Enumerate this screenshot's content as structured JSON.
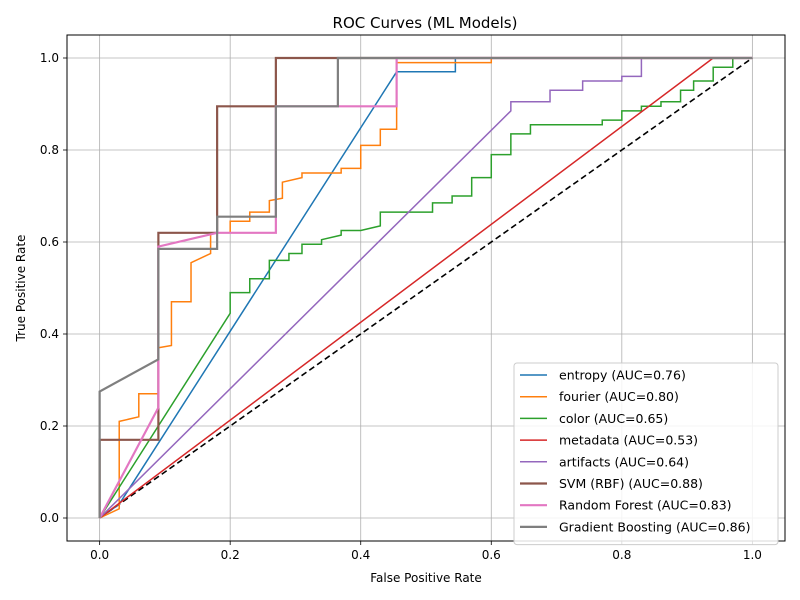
{
  "chart_data": {
    "type": "line",
    "title": "ROC Curves (ML Models)",
    "xlabel": "False Positive Rate",
    "ylabel": "True Positive Rate",
    "xlim": [
      -0.05,
      1.05
    ],
    "ylim": [
      -0.05,
      1.05
    ],
    "xticks": [
      0.0,
      0.2,
      0.4,
      0.6,
      0.8,
      1.0
    ],
    "yticks": [
      0.0,
      0.2,
      0.4,
      0.6,
      0.8,
      1.0
    ],
    "xtick_labels": [
      "0.0",
      "0.2",
      "0.4",
      "0.6",
      "0.8",
      "1.0"
    ],
    "ytick_labels": [
      "0.0",
      "0.2",
      "0.4",
      "0.6",
      "0.8",
      "1.0"
    ],
    "grid": true,
    "legend_position": "lower-right",
    "diagonal": {
      "x": [
        0,
        1
      ],
      "y": [
        0,
        1
      ],
      "color": "#000000",
      "style": "dashed"
    },
    "series": [
      {
        "name": "entropy (AUC=0.76)",
        "color": "#1f77b4",
        "x": [
          0,
          0.03,
          0.455,
          0.455,
          0.545,
          0.545,
          1.0
        ],
        "y": [
          0,
          0.03,
          0.97,
          0.97,
          0.97,
          1.0,
          1.0
        ]
      },
      {
        "name": "fourier (AUC=0.80)",
        "color": "#ff7f0e",
        "x": [
          0,
          0.03,
          0.03,
          0.06,
          0.06,
          0.09,
          0.09,
          0.11,
          0.11,
          0.14,
          0.14,
          0.17,
          0.17,
          0.2,
          0.2,
          0.23,
          0.23,
          0.26,
          0.26,
          0.28,
          0.28,
          0.31,
          0.31,
          0.37,
          0.37,
          0.4,
          0.4,
          0.43,
          0.43,
          0.455,
          0.455,
          0.6,
          0.6,
          1.0
        ],
        "y": [
          0,
          0.02,
          0.21,
          0.22,
          0.27,
          0.27,
          0.37,
          0.375,
          0.47,
          0.47,
          0.555,
          0.575,
          0.62,
          0.62,
          0.645,
          0.645,
          0.665,
          0.665,
          0.69,
          0.695,
          0.73,
          0.74,
          0.75,
          0.75,
          0.76,
          0.76,
          0.81,
          0.81,
          0.845,
          0.845,
          0.99,
          0.99,
          1.0,
          1.0
        ]
      },
      {
        "name": "color (AUC=0.65)",
        "color": "#2ca02c",
        "x": [
          0,
          0.2,
          0.2,
          0.23,
          0.23,
          0.26,
          0.26,
          0.29,
          0.29,
          0.31,
          0.31,
          0.34,
          0.34,
          0.37,
          0.37,
          0.4,
          0.43,
          0.43,
          0.51,
          0.51,
          0.54,
          0.54,
          0.57,
          0.57,
          0.6,
          0.6,
          0.63,
          0.63,
          0.66,
          0.66,
          0.77,
          0.77,
          0.8,
          0.8,
          0.83,
          0.83,
          0.86,
          0.86,
          0.89,
          0.89,
          0.91,
          0.91,
          0.94,
          0.94,
          0.97,
          0.97,
          1.0
        ],
        "y": [
          0,
          0.445,
          0.49,
          0.49,
          0.52,
          0.52,
          0.56,
          0.56,
          0.575,
          0.575,
          0.595,
          0.595,
          0.605,
          0.615,
          0.625,
          0.625,
          0.635,
          0.665,
          0.665,
          0.685,
          0.685,
          0.7,
          0.7,
          0.74,
          0.74,
          0.79,
          0.79,
          0.835,
          0.835,
          0.855,
          0.855,
          0.865,
          0.865,
          0.885,
          0.885,
          0.895,
          0.895,
          0.905,
          0.905,
          0.93,
          0.93,
          0.95,
          0.95,
          0.98,
          0.98,
          1.0,
          1.0
        ]
      },
      {
        "name": "metadata (AUC=0.53)",
        "color": "#d62728",
        "x": [
          0,
          0.94,
          1.0
        ],
        "y": [
          0,
          1.0,
          1.0
        ]
      },
      {
        "name": "artifacts (AUC=0.64)",
        "color": "#9467bd",
        "x": [
          0,
          0.63,
          0.63,
          0.69,
          0.69,
          0.74,
          0.74,
          0.8,
          0.8,
          0.83,
          0.83,
          1.0
        ],
        "y": [
          0,
          0.885,
          0.905,
          0.905,
          0.93,
          0.93,
          0.95,
          0.95,
          0.96,
          0.96,
          1.0,
          1.0
        ]
      },
      {
        "name": "SVM (RBF) (AUC=0.88)",
        "color": "#8c564b",
        "x": [
          0,
          0,
          0.09,
          0.09,
          0.18,
          0.18,
          0.27,
          0.27,
          1.0
        ],
        "y": [
          0,
          0.17,
          0.17,
          0.62,
          0.62,
          0.895,
          0.895,
          1.0,
          1.0
        ]
      },
      {
        "name": "Random Forest (AUC=0.83)",
        "color": "#e377c2",
        "x": [
          0,
          0.09,
          0.09,
          0.18,
          0.27,
          0.27,
          0.455,
          0.455,
          1.0
        ],
        "y": [
          0,
          0.24,
          0.59,
          0.62,
          0.62,
          0.895,
          0.895,
          1.0,
          1.0
        ]
      },
      {
        "name": "Gradient Boosting (AUC=0.86)",
        "color": "#7f7f7f",
        "x": [
          0,
          0,
          0.09,
          0.09,
          0.18,
          0.18,
          0.27,
          0.27,
          0.365,
          0.365,
          1.0
        ],
        "y": [
          0,
          0.275,
          0.345,
          0.585,
          0.585,
          0.655,
          0.655,
          0.895,
          0.895,
          1.0,
          1.0
        ]
      }
    ]
  }
}
